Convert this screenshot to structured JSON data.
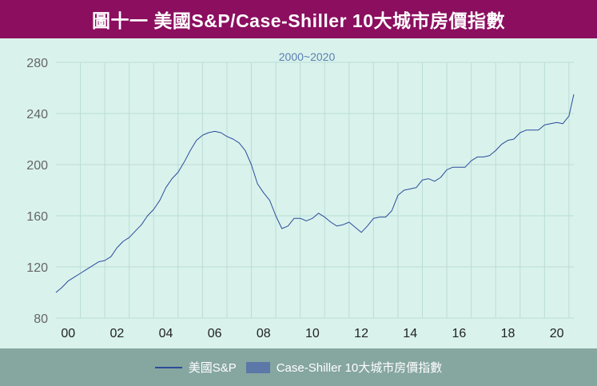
{
  "header": {
    "title": "圖十一  美國S&P/Case-Shiller 10大城市房價指數"
  },
  "chart_data": {
    "type": "line",
    "subtitle": "2000~2020",
    "x_tick_labels": [
      "00",
      "02",
      "04",
      "06",
      "08",
      "10",
      "12",
      "14",
      "16",
      "18",
      "20"
    ],
    "y_ticks": [
      80,
      120,
      160,
      200,
      240,
      280
    ],
    "ylim": [
      80,
      280
    ],
    "xlim": [
      2000,
      2021.2
    ],
    "grid": true,
    "legend_position": "bottom",
    "series": [
      {
        "name": "美國S&P",
        "color": "#2b4c9a",
        "x": [
          2000.0,
          2000.25,
          2000.5,
          2000.75,
          2001.0,
          2001.25,
          2001.5,
          2001.75,
          2002.0,
          2002.25,
          2002.5,
          2002.75,
          2003.0,
          2003.25,
          2003.5,
          2003.75,
          2004.0,
          2004.25,
          2004.5,
          2004.75,
          2005.0,
          2005.25,
          2005.5,
          2005.75,
          2006.0,
          2006.25,
          2006.5,
          2006.75,
          2007.0,
          2007.25,
          2007.5,
          2007.75,
          2008.0,
          2008.25,
          2008.5,
          2008.75,
          2009.0,
          2009.25,
          2009.5,
          2009.75,
          2010.0,
          2010.25,
          2010.5,
          2010.75,
          2011.0,
          2011.25,
          2011.5,
          2011.75,
          2012.0,
          2012.25,
          2012.5,
          2012.75,
          2013.0,
          2013.25,
          2013.5,
          2013.75,
          2014.0,
          2014.25,
          2014.5,
          2014.75,
          2015.0,
          2015.25,
          2015.5,
          2015.75,
          2016.0,
          2016.25,
          2016.5,
          2016.75,
          2017.0,
          2017.25,
          2017.5,
          2017.75,
          2018.0,
          2018.25,
          2018.5,
          2018.75,
          2019.0,
          2019.25,
          2019.5,
          2019.75,
          2020.0,
          2020.25,
          2020.5,
          2020.75,
          2021.0,
          2021.2
        ],
        "y": [
          100,
          104,
          109,
          112,
          115,
          118,
          121,
          124,
          125,
          128,
          135,
          140,
          143,
          148,
          153,
          160,
          165,
          172,
          182,
          189,
          194,
          202,
          211,
          219,
          223,
          225,
          226,
          225,
          222,
          220,
          217,
          211,
          200,
          185,
          178,
          172,
          160,
          150,
          152,
          158,
          158,
          156,
          158,
          162,
          159,
          155,
          152,
          153,
          155,
          151,
          147,
          152,
          158,
          159,
          159,
          164,
          176,
          180,
          181,
          182,
          188,
          189,
          187,
          190,
          196,
          198,
          198,
          198,
          203,
          206,
          206,
          207,
          211,
          216,
          219,
          220,
          225,
          227,
          227,
          227,
          231,
          232,
          233,
          232,
          238,
          255
        ]
      }
    ]
  },
  "legend": [
    {
      "label": "美國S&P",
      "kind": "line"
    },
    {
      "label": "Case-Shiller 10大城市房價指數",
      "kind": "swatch"
    }
  ]
}
